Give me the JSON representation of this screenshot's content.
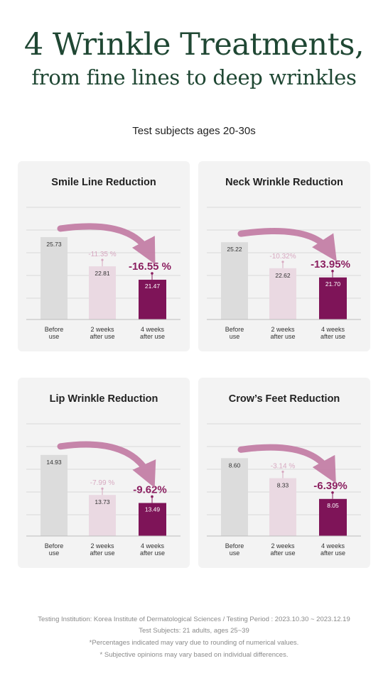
{
  "header": {
    "title_line1": "4 Wrinkle Treatments,",
    "title_line2": "from fine lines to deep wrinkles",
    "subtitle": "Test subjects ages 20-30s"
  },
  "colors": {
    "title": "#1f4733",
    "before_bar": "#dcdcdc",
    "week2_bar": "#ead9e2",
    "week4_bar": "#7e1458",
    "accent": "#8b1f60",
    "week2_pct": "#d7a9c1",
    "arrow": "#c27aa3"
  },
  "chart_data": [
    {
      "type": "bar",
      "title": "Smile Line Reduction",
      "categories": [
        "Before\nuse",
        "2 weeks\nafter use",
        "4 weeks\nafter use"
      ],
      "values": [
        25.73,
        22.81,
        21.47
      ],
      "value_labels": [
        "25.73",
        "22.81",
        "21.47"
      ],
      "pct_2w": "-11.35 %",
      "pct_4w": "-16.55 %",
      "ylim": [
        17.5,
        27.5
      ]
    },
    {
      "type": "bar",
      "title": "Neck Wrinkle Reduction",
      "categories": [
        "Before\nuse",
        "2 weeks\nafter use",
        "4 weeks\nafter use"
      ],
      "values": [
        25.22,
        22.62,
        21.7
      ],
      "value_labels": [
        "25.22",
        "22.62",
        "21.70"
      ],
      "pct_2w": "-10.32%",
      "pct_4w": "-13.95%",
      "ylim": [
        17.5,
        27.5
      ]
    },
    {
      "type": "bar",
      "title": "Lip Wrinkle Reduction",
      "categories": [
        "Before\nuse",
        "2 weeks\nafter use",
        "4 weeks\nafter use"
      ],
      "values": [
        14.93,
        13.73,
        13.49
      ],
      "value_labels": [
        "14.93",
        "13.73",
        "13.49"
      ],
      "pct_2w": "-7.99 %",
      "pct_4w": "-9.62%",
      "ylim": [
        12.5,
        15.5
      ]
    },
    {
      "type": "bar",
      "title": "Crow’s Feet Reduction",
      "categories": [
        "Before\nuse",
        "2 weeks\nafter use",
        "4 weeks\nafter use"
      ],
      "values": [
        8.6,
        8.33,
        8.05
      ],
      "value_labels": [
        "8.60",
        "8.33",
        "8.05"
      ],
      "pct_2w": "-3.14 %",
      "pct_4w": "-6.39%",
      "ylim": [
        7.55,
        8.9
      ]
    }
  ],
  "footer": {
    "line1": "Testing Institution: Korea Institute of Dermatological Sciences / Testing Period : 2023.10.30 ~ 2023.12.19",
    "line2": "Test Subjects: 21 adults, ages 25~39",
    "line3": "*Percentages indicated may vary due to rounding of numerical values.",
    "line4": "* Subjective opinions may vary based on individual differences."
  }
}
